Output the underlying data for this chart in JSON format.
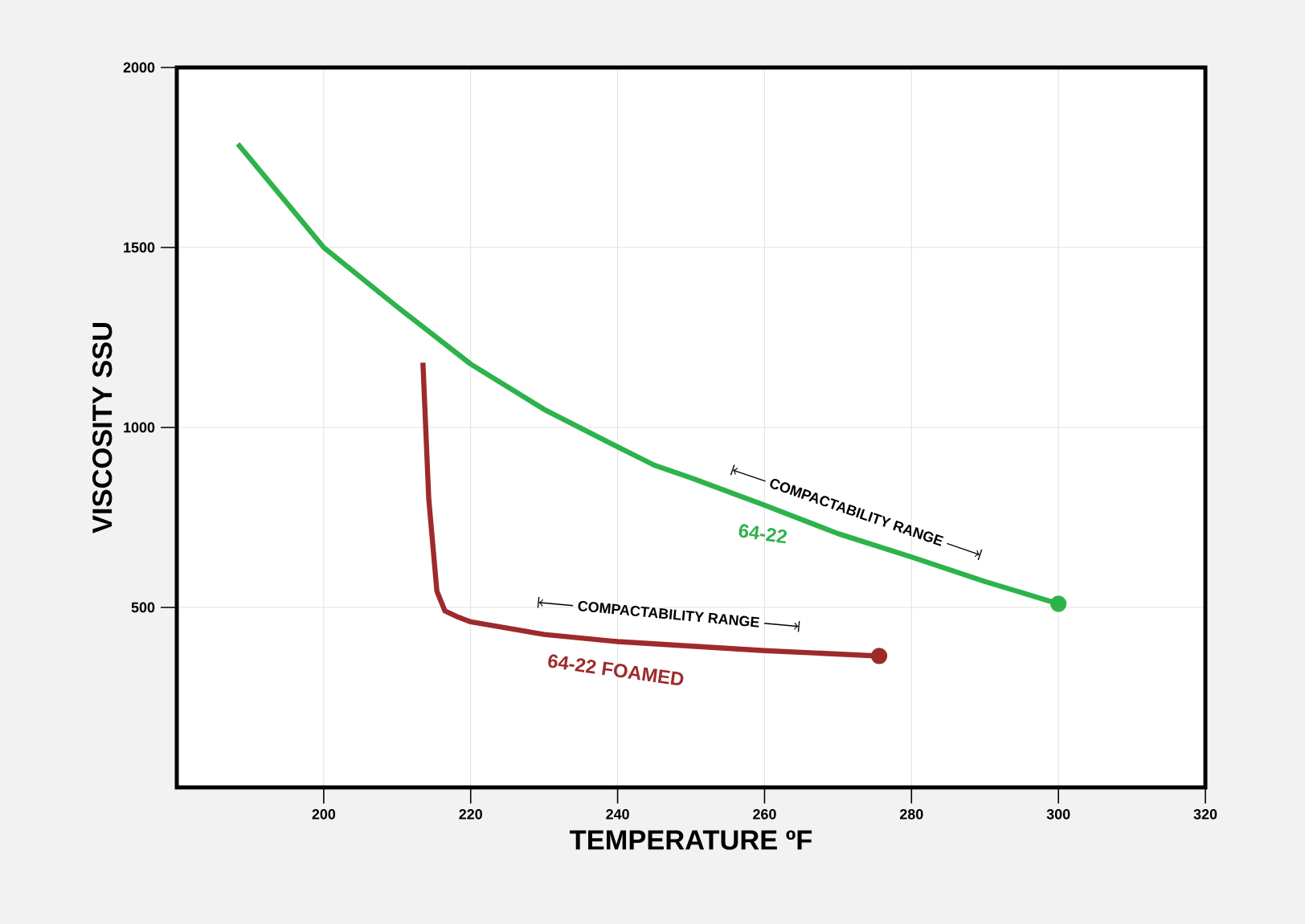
{
  "chart_data": {
    "type": "line",
    "xlabel": "TEMPERATURE ºF",
    "ylabel": "VISCOSITY SSU",
    "xlim": [
      180,
      320
    ],
    "ylim": [
      0,
      2000
    ],
    "xticks": [
      200,
      220,
      240,
      260,
      280,
      300,
      320
    ],
    "yticks": [
      500,
      1000,
      1500,
      2000
    ],
    "grid": true,
    "series": [
      {
        "name": "64-22",
        "color": "#2db34a",
        "x": [
          188.3,
          200,
          210,
          220,
          230,
          240,
          245,
          250,
          260,
          270,
          280,
          290,
          300
        ],
        "values": [
          1788,
          1500,
          1335,
          1176,
          1050,
          946,
          895,
          860,
          784,
          705,
          640,
          572,
          510
        ]
      },
      {
        "name": "64-22 FOAMED",
        "color": "#9e2a2b",
        "x": [
          213.5,
          214.3,
          215.4,
          216.5,
          218.3,
          220,
          230,
          240,
          260,
          275.6
        ],
        "values": [
          1180,
          800,
          545,
          490,
          473,
          460,
          425,
          405,
          380,
          365
        ]
      }
    ],
    "annotations": [
      "COMPACTABILITY RANGE",
      "COMPACTABILITY RANGE"
    ]
  }
}
